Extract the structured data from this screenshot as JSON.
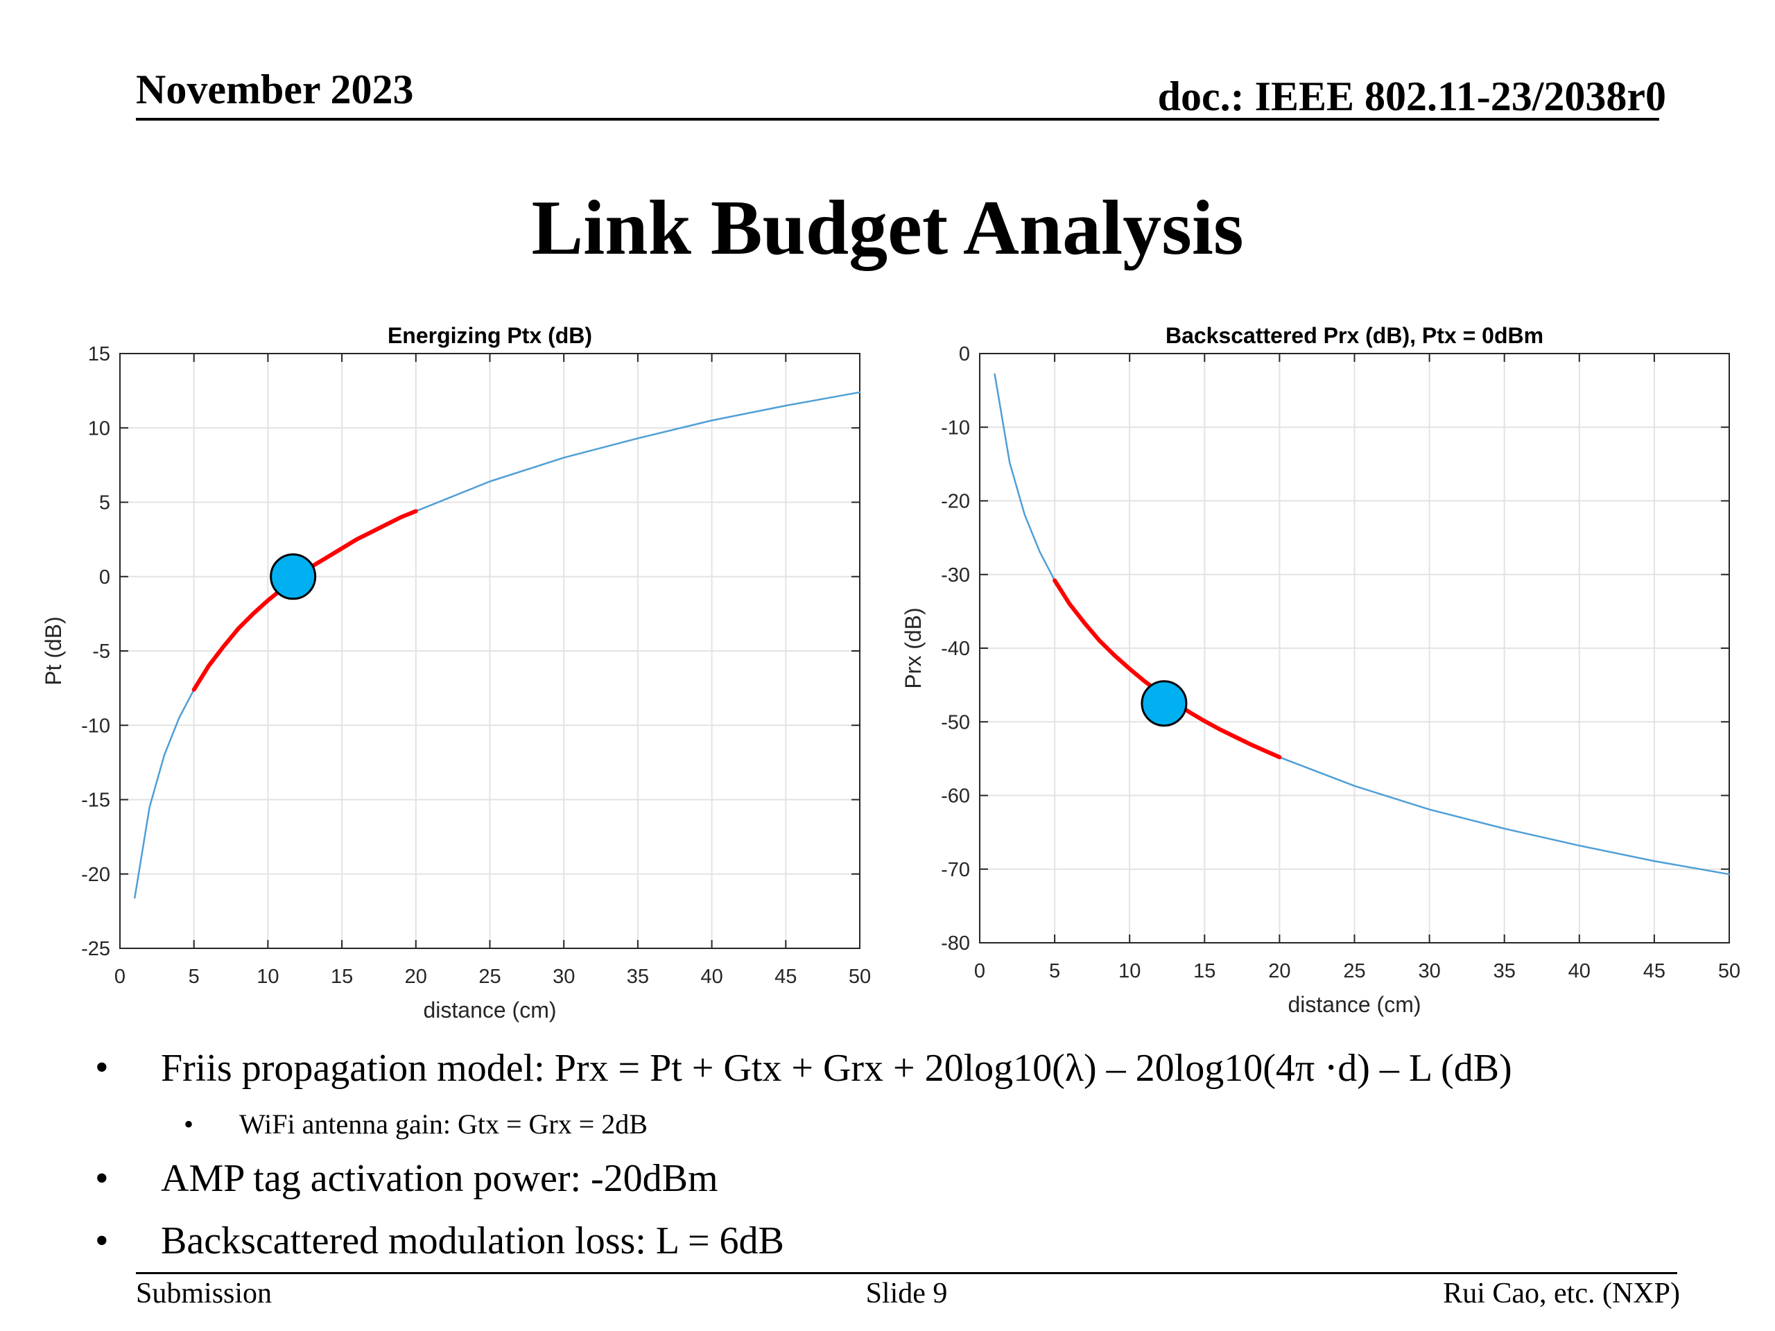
{
  "header": {
    "date": "November 2023",
    "doc": "doc.: IEEE 802.11-23/2038r0"
  },
  "title": "Link Budget Analysis",
  "chart_data": [
    {
      "type": "line",
      "title": "Energizing Ptx (dB)",
      "xlabel": "distance (cm)",
      "ylabel": "Pt (dB)",
      "xlim": [
        0,
        50
      ],
      "ylim": [
        -25,
        15
      ],
      "xticks": [
        0,
        5,
        10,
        15,
        20,
        25,
        30,
        35,
        40,
        45,
        50
      ],
      "yticks": [
        -25,
        -20,
        -15,
        -10,
        -5,
        0,
        5,
        10,
        15
      ],
      "grid": true,
      "series": [
        {
          "color": "#4f9fd6",
          "x": [
            1,
            2,
            3,
            4,
            5,
            6,
            8,
            10,
            12,
            14,
            16,
            18,
            20,
            25,
            30,
            35,
            40,
            45,
            50
          ],
          "y": [
            -21.6,
            -15.5,
            -12.0,
            -9.5,
            -7.6,
            -6.0,
            -3.5,
            -1.6,
            0.0,
            1.3,
            2.5,
            3.5,
            4.4,
            6.4,
            8.0,
            9.3,
            10.5,
            11.5,
            12.4
          ]
        },
        {
          "color": "#ff0000",
          "x": [
            5,
            6,
            7,
            8,
            9,
            10,
            11,
            12,
            13,
            14,
            15,
            16,
            17,
            18,
            19,
            20
          ],
          "y": [
            -7.6,
            -6.0,
            -4.7,
            -3.5,
            -2.5,
            -1.6,
            -0.8,
            0.0,
            0.7,
            1.3,
            1.9,
            2.5,
            3.0,
            3.5,
            4.0,
            4.4
          ]
        }
      ],
      "marker": {
        "x": 11.7,
        "y": 0,
        "color": "#00b0f0"
      }
    },
    {
      "type": "line",
      "title": "Backscattered Prx (dB), Ptx = 0dBm",
      "xlabel": "distance (cm)",
      "ylabel": "Prx (dB)",
      "xlim": [
        0,
        50
      ],
      "ylim": [
        -80,
        0
      ],
      "xticks": [
        0,
        5,
        10,
        15,
        20,
        25,
        30,
        35,
        40,
        45,
        50
      ],
      "yticks": [
        -80,
        -70,
        -60,
        -50,
        -40,
        -30,
        -20,
        -10,
        0
      ],
      "grid": true,
      "series": [
        {
          "color": "#4f9fd6",
          "x": [
            1,
            2,
            3,
            4,
            5,
            6,
            8,
            10,
            12,
            14,
            16,
            18,
            20,
            25,
            30,
            35,
            40,
            45,
            50
          ],
          "y": [
            -2.8,
            -14.8,
            -21.9,
            -26.9,
            -30.8,
            -34.0,
            -39.0,
            -42.8,
            -46.0,
            -48.7,
            -51.0,
            -53.0,
            -54.8,
            -58.7,
            -61.9,
            -64.5,
            -66.8,
            -68.9,
            -70.7
          ]
        },
        {
          "color": "#ff0000",
          "x": [
            5,
            6,
            7,
            8,
            9,
            10,
            11,
            12,
            13,
            14,
            15,
            16,
            17,
            18,
            19,
            20
          ],
          "y": [
            -30.8,
            -34.0,
            -36.6,
            -39.0,
            -41.0,
            -42.8,
            -44.5,
            -46.0,
            -47.4,
            -48.7,
            -49.9,
            -51.0,
            -52.0,
            -53.0,
            -53.9,
            -54.8
          ]
        }
      ],
      "marker": {
        "x": 12.3,
        "y": -47.5,
        "color": "#00b0f0"
      }
    }
  ],
  "bullets": {
    "b1": "Friis propagation model: Prx = Pt + Gtx + Grx + 20log10(λ) – 20log10(4π ⋅d) – L (dB)",
    "b2": "WiFi antenna gain: Gtx = Grx = 2dB",
    "b3": "AMP tag activation power: -20dBm",
    "b4": "Backscattered modulation loss: L = 6dB",
    "symbol": "•"
  },
  "footer": {
    "left": "Submission",
    "center": "Slide 9",
    "right": "Rui Cao, etc. (NXP)"
  }
}
